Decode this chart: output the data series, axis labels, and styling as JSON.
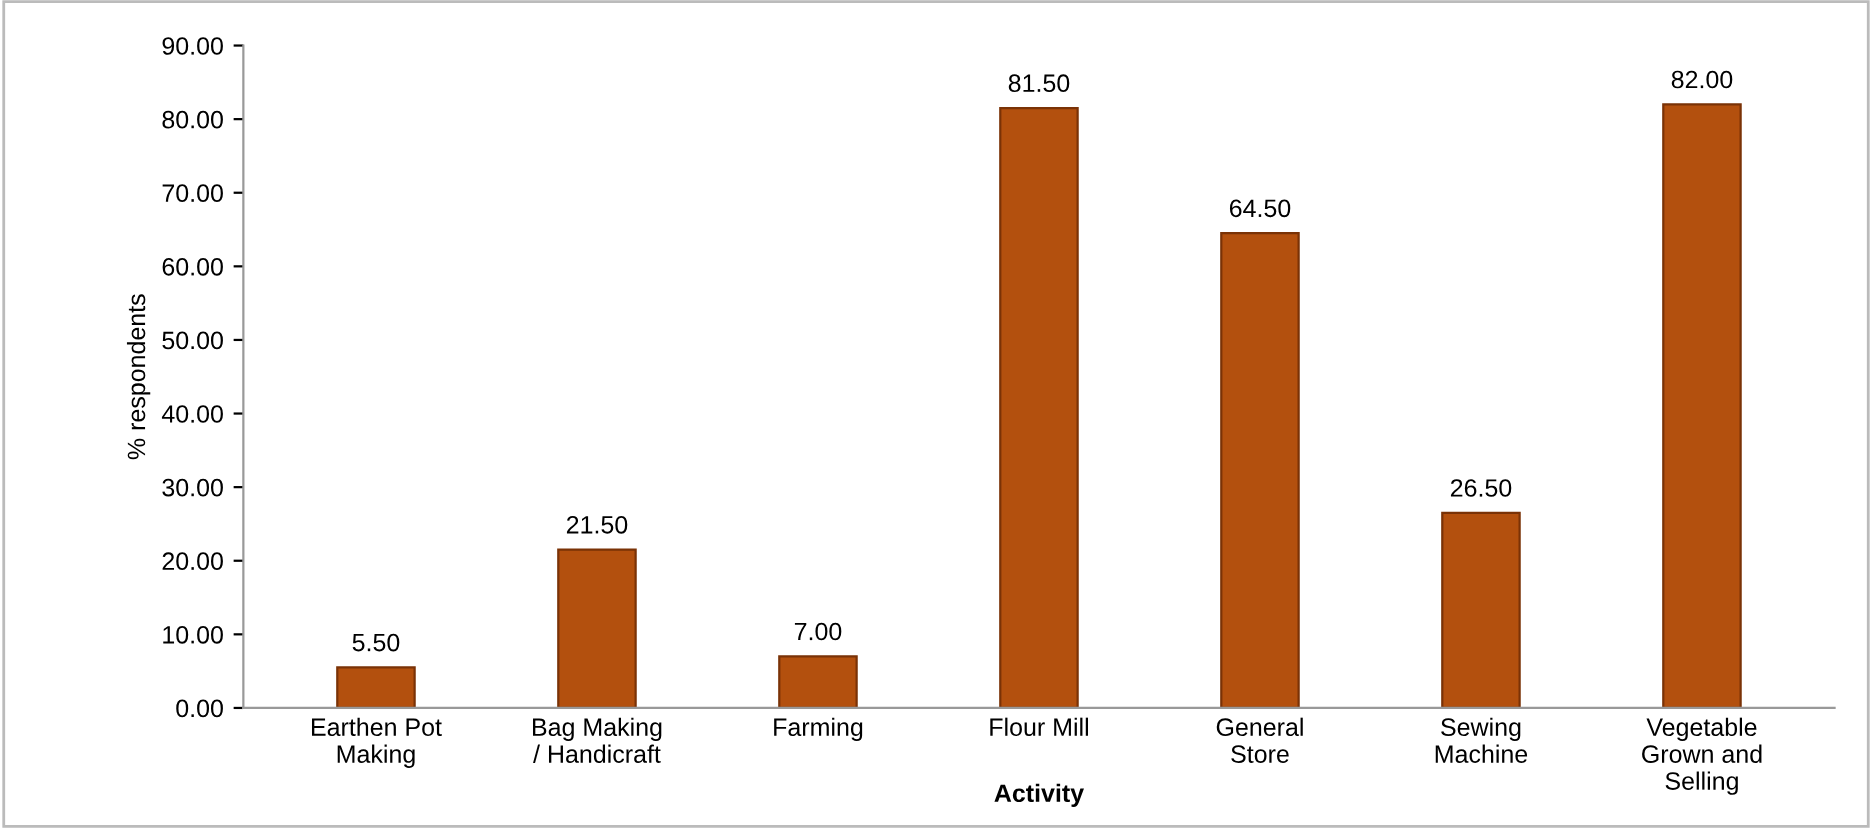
{
  "chart_data": {
    "type": "bar",
    "xlabel": "Activity",
    "ylabel": "% respondents",
    "categories": [
      "Earthen Pot\nMaking",
      "Bag Making\n/ Handicraft",
      "Farming",
      "Flour Mill",
      "General\nStore",
      "Sewing\nMachine",
      "Vegetable\nGrown and\nSelling"
    ],
    "values": [
      5.5,
      21.5,
      7.0,
      81.5,
      64.5,
      26.5,
      82.0
    ],
    "value_labels": [
      "5.50",
      "21.50",
      "7.00",
      "81.50",
      "64.50",
      "26.50",
      "82.00"
    ],
    "color": "#b3500e",
    "ylim": [
      0,
      90
    ],
    "yticks": [
      {
        "value": 0,
        "label": "0.00"
      },
      {
        "value": 10,
        "label": "10.00"
      },
      {
        "value": 20,
        "label": "20.00"
      },
      {
        "value": 30,
        "label": "30.00"
      },
      {
        "value": 40,
        "label": "40.00"
      },
      {
        "value": 50,
        "label": "50.00"
      },
      {
        "value": 60,
        "label": "60.00"
      },
      {
        "value": 70,
        "label": "70.00"
      },
      {
        "value": 80,
        "label": "80.00"
      },
      {
        "value": 90,
        "label": "90.00"
      }
    ],
    "grid": false,
    "legend": false
  }
}
